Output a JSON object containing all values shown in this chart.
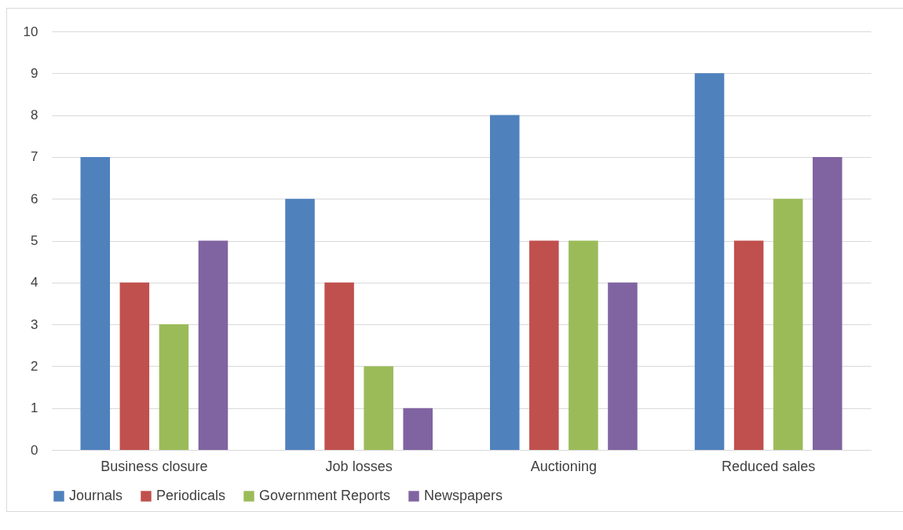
{
  "chart_data": {
    "type": "bar",
    "categories": [
      "Business closure",
      "Job losses",
      "Auctioning",
      "Reduced sales"
    ],
    "series": [
      {
        "name": "Journals",
        "color": "#4f81bd",
        "values": [
          7,
          6,
          8,
          9
        ]
      },
      {
        "name": "Periodicals",
        "color": "#c0504d",
        "values": [
          4,
          4,
          5,
          5
        ]
      },
      {
        "name": "Government Reports",
        "color": "#9bbb59",
        "values": [
          3,
          2,
          5,
          6
        ]
      },
      {
        "name": "Newspapers",
        "color": "#8064a2",
        "values": [
          5,
          1,
          4,
          7
        ]
      }
    ],
    "ylim": [
      0,
      10
    ],
    "yticks": [
      0,
      1,
      2,
      3,
      4,
      5,
      6,
      7,
      8,
      9,
      10
    ],
    "grid": "y",
    "legend": "bottom"
  }
}
